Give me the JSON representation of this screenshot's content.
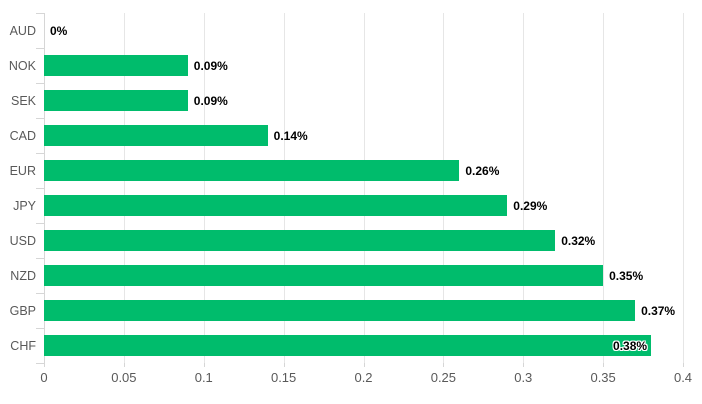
{
  "chart_data": {
    "type": "bar",
    "orientation": "horizontal",
    "categories": [
      "AUD",
      "NOK",
      "SEK",
      "CAD",
      "EUR",
      "JPY",
      "USD",
      "NZD",
      "GBP",
      "CHF"
    ],
    "values": [
      0,
      0.09,
      0.09,
      0.14,
      0.26,
      0.29,
      0.32,
      0.35,
      0.37,
      0.38
    ],
    "data_labels": [
      "0%",
      "0.09%",
      "0.09%",
      "0.14%",
      "0.26%",
      "0.29%",
      "0.32%",
      "0.35%",
      "0.37%",
      "0.38%"
    ],
    "inside_label_categories": [
      "CHF"
    ],
    "x_ticks": [
      "0",
      "0.05",
      "0.1",
      "0.15",
      "0.2",
      "0.25",
      "0.3",
      "0.35",
      "0.4"
    ],
    "xlim": [
      0,
      0.4
    ],
    "grid": "vertical-only",
    "legend": "none",
    "colors": {
      "bar": "#00bc6c",
      "grid": "#e6e6e6",
      "axis": "#d6d6d6",
      "tick_label": "#595959",
      "data_label": "#000000",
      "background": "#ffffff"
    }
  }
}
